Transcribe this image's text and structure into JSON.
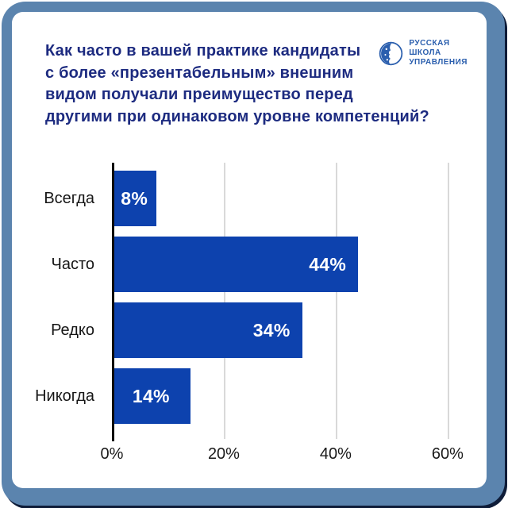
{
  "title": {
    "full": "Как часто в вашей практике кандидаты с более «презентабельным» внешним видом получали преимущество перед другими при одинаковом уровне компетенций?",
    "lines": [
      "Как часто в вашей практике кандидаты",
      "с более «презентабельным» внешним",
      "видом получали преимущество перед",
      "другими при одинаковом уровне компетенций?"
    ]
  },
  "logo": {
    "lines": [
      "РУССКАЯ",
      "ШКОЛА",
      "УПРАВЛЕНИЯ"
    ]
  },
  "chart_data": {
    "type": "bar",
    "orientation": "horizontal",
    "title": "Как часто в вашей практике кандидаты с более «презентабельным» внешним видом получали преимущество перед другими при одинаковом уровне компетенций?",
    "categories": [
      "Всегда",
      "Часто",
      "Редко",
      "Никогда"
    ],
    "values": [
      8,
      44,
      34,
      14
    ],
    "value_labels": [
      "8%",
      "44%",
      "34%",
      "14%"
    ],
    "x_tick_labels": [
      "0%",
      "20%",
      "40%",
      "60%"
    ],
    "x_tick_values": [
      0,
      20,
      40,
      60
    ],
    "xlim": [
      0,
      62
    ],
    "grid": "vertical",
    "legend": "none",
    "xlabel": "",
    "ylabel": ""
  },
  "colors": {
    "bar_blue": "#0d42ae",
    "title_navy": "#1d2b80",
    "logo_blue": "#2b5fae",
    "frame_blue": "#5b84ae",
    "shadow_navy": "#0e1c38",
    "card_white": "#ffffff",
    "gridline_gray": "#d9d9d9",
    "axis_black": "#0b0b0b",
    "value_text_white": "#ffffff",
    "label_dark": "#161616"
  }
}
